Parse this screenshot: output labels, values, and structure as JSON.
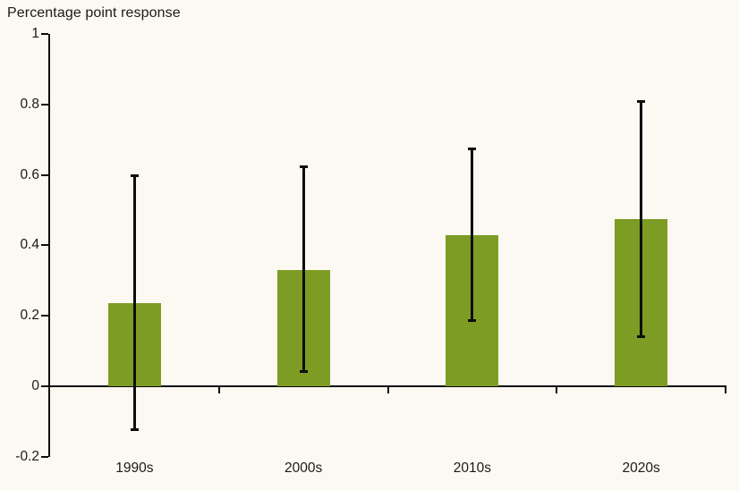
{
  "chart_data": {
    "type": "bar",
    "title": "Percentage point response",
    "categories": [
      "1990s",
      "2000s",
      "2010s",
      "2020s"
    ],
    "series": [
      {
        "name": "Percentage point response",
        "values": [
          0.235,
          0.33,
          0.43,
          0.475
        ],
        "ci_low": [
          -0.125,
          0.04,
          0.185,
          0.14
        ],
        "ci_high": [
          0.6,
          0.625,
          0.675,
          0.81
        ]
      }
    ],
    "xlabel": "",
    "ylabel": "Percentage point response",
    "ylim": [
      -0.2,
      1
    ],
    "yticks": [
      1,
      0.8,
      0.6,
      0.4,
      0.2,
      0,
      -0.2
    ],
    "ytick_labels": [
      "1",
      "0.8",
      "0.6",
      "0.4",
      "0.2",
      "0",
      "-0.2"
    ],
    "grid": false,
    "error_bars": true,
    "legend": "none",
    "colors": {
      "bar": "#7d9c23",
      "error": "#0d0d0d",
      "axis": "#0d0d0d",
      "text": "#1a1a1a",
      "background": "#fbf9f1"
    }
  }
}
